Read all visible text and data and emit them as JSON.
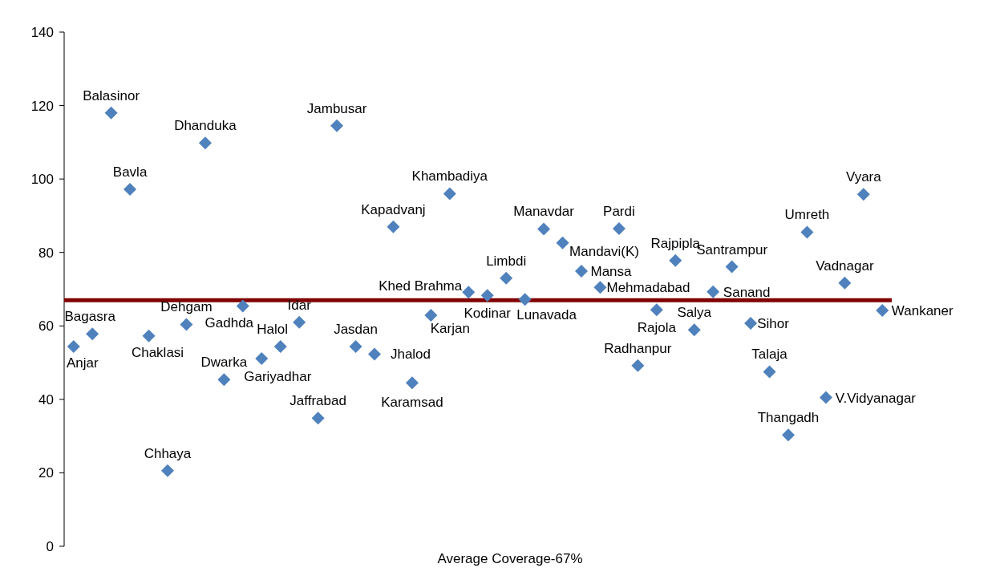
{
  "chart_data": {
    "type": "scatter",
    "categories": [
      null,
      null,
      null,
      null,
      null,
      null,
      null,
      null,
      null,
      null,
      null,
      null,
      null,
      null,
      null,
      null,
      null,
      null,
      null,
      null,
      null,
      null,
      null,
      null,
      null,
      null,
      null,
      null,
      null,
      null,
      null,
      null,
      null,
      null,
      null,
      null,
      null,
      null,
      null,
      null,
      null,
      null,
      null,
      null
    ],
    "xlabel": "Average Coverage-67%",
    "series": [
      {
        "name": "Anjar",
        "color": "#4f81bd",
        "values": [
          54.4,
          null,
          null,
          null,
          null,
          null,
          null,
          null,
          null,
          null,
          null,
          null,
          null,
          null,
          null,
          null,
          null,
          null,
          null,
          null,
          null,
          null,
          null,
          null,
          null,
          null,
          null,
          null,
          null,
          null,
          null,
          null,
          null,
          null,
          null,
          null,
          null,
          null,
          null,
          null,
          null,
          null,
          null,
          null
        ]
      },
      {
        "name": "Bagasra",
        "color": "#4f81bd",
        "values": [
          null,
          57.8,
          null,
          null,
          null,
          null,
          null,
          null,
          null,
          null,
          null,
          null,
          null,
          null,
          null,
          null,
          null,
          null,
          null,
          null,
          null,
          null,
          null,
          null,
          null,
          null,
          null,
          null,
          null,
          null,
          null,
          null,
          null,
          null,
          null,
          null,
          null,
          null,
          null,
          null,
          null,
          null,
          null,
          null
        ]
      },
      {
        "name": "Balasinor",
        "color": "#4f81bd",
        "values": [
          null,
          null,
          118.0,
          null,
          null,
          null,
          null,
          null,
          null,
          null,
          null,
          null,
          null,
          null,
          null,
          null,
          null,
          null,
          null,
          null,
          null,
          null,
          null,
          null,
          null,
          null,
          null,
          null,
          null,
          null,
          null,
          null,
          null,
          null,
          null,
          null,
          null,
          null,
          null,
          null,
          null,
          null,
          null,
          null
        ]
      },
      {
        "name": "Bavla",
        "color": "#4f81bd",
        "values": [
          null,
          null,
          null,
          97.2,
          null,
          null,
          null,
          null,
          null,
          null,
          null,
          null,
          null,
          null,
          null,
          null,
          null,
          null,
          null,
          null,
          null,
          null,
          null,
          null,
          null,
          null,
          null,
          null,
          null,
          null,
          null,
          null,
          null,
          null,
          null,
          null,
          null,
          null,
          null,
          null,
          null,
          null,
          null,
          null
        ]
      },
      {
        "name": "Chaklasi",
        "color": "#4f81bd",
        "values": [
          null,
          null,
          null,
          null,
          57.3,
          null,
          null,
          null,
          null,
          null,
          null,
          null,
          null,
          null,
          null,
          null,
          null,
          null,
          null,
          null,
          null,
          null,
          null,
          null,
          null,
          null,
          null,
          null,
          null,
          null,
          null,
          null,
          null,
          null,
          null,
          null,
          null,
          null,
          null,
          null,
          null,
          null,
          null,
          null
        ]
      },
      {
        "name": "Chhaya",
        "color": "#4f81bd",
        "values": [
          null,
          null,
          null,
          null,
          null,
          20.6,
          null,
          null,
          null,
          null,
          null,
          null,
          null,
          null,
          null,
          null,
          null,
          null,
          null,
          null,
          null,
          null,
          null,
          null,
          null,
          null,
          null,
          null,
          null,
          null,
          null,
          null,
          null,
          null,
          null,
          null,
          null,
          null,
          null,
          null,
          null,
          null,
          null,
          null
        ]
      },
      {
        "name": "Dehgam",
        "color": "#4f81bd",
        "values": [
          null,
          null,
          null,
          null,
          null,
          null,
          60.4,
          null,
          null,
          null,
          null,
          null,
          null,
          null,
          null,
          null,
          null,
          null,
          null,
          null,
          null,
          null,
          null,
          null,
          null,
          null,
          null,
          null,
          null,
          null,
          null,
          null,
          null,
          null,
          null,
          null,
          null,
          null,
          null,
          null,
          null,
          null,
          null,
          null
        ]
      },
      {
        "name": "Dhanduka",
        "color": "#4f81bd",
        "values": [
          null,
          null,
          null,
          null,
          null,
          null,
          null,
          109.8,
          null,
          null,
          null,
          null,
          null,
          null,
          null,
          null,
          null,
          null,
          null,
          null,
          null,
          null,
          null,
          null,
          null,
          null,
          null,
          null,
          null,
          null,
          null,
          null,
          null,
          null,
          null,
          null,
          null,
          null,
          null,
          null,
          null,
          null,
          null,
          null
        ]
      },
      {
        "name": "Dwarka",
        "color": "#4f81bd",
        "values": [
          null,
          null,
          null,
          null,
          null,
          null,
          null,
          null,
          45.4,
          null,
          null,
          null,
          null,
          null,
          null,
          null,
          null,
          null,
          null,
          null,
          null,
          null,
          null,
          null,
          null,
          null,
          null,
          null,
          null,
          null,
          null,
          null,
          null,
          null,
          null,
          null,
          null,
          null,
          null,
          null,
          null,
          null,
          null,
          null
        ]
      },
      {
        "name": "Gadhda",
        "color": "#4f81bd",
        "values": [
          null,
          null,
          null,
          null,
          null,
          null,
          null,
          null,
          null,
          65.4,
          null,
          null,
          null,
          null,
          null,
          null,
          null,
          null,
          null,
          null,
          null,
          null,
          null,
          null,
          null,
          null,
          null,
          null,
          null,
          null,
          null,
          null,
          null,
          null,
          null,
          null,
          null,
          null,
          null,
          null,
          null,
          null,
          null,
          null
        ]
      },
      {
        "name": "Gariyadhar",
        "color": "#4f81bd",
        "values": [
          null,
          null,
          null,
          null,
          null,
          null,
          null,
          null,
          null,
          null,
          51.1,
          null,
          null,
          null,
          null,
          null,
          null,
          null,
          null,
          null,
          null,
          null,
          null,
          null,
          null,
          null,
          null,
          null,
          null,
          null,
          null,
          null,
          null,
          null,
          null,
          null,
          null,
          null,
          null,
          null,
          null,
          null,
          null,
          null
        ]
      },
      {
        "name": "Halol",
        "color": "#4f81bd",
        "values": [
          null,
          null,
          null,
          null,
          null,
          null,
          null,
          null,
          null,
          null,
          null,
          54.4,
          null,
          null,
          null,
          null,
          null,
          null,
          null,
          null,
          null,
          null,
          null,
          null,
          null,
          null,
          null,
          null,
          null,
          null,
          null,
          null,
          null,
          null,
          null,
          null,
          null,
          null,
          null,
          null,
          null,
          null,
          null,
          null
        ]
      },
      {
        "name": "Idar",
        "color": "#4f81bd",
        "values": [
          null,
          null,
          null,
          null,
          null,
          null,
          null,
          null,
          null,
          null,
          null,
          null,
          61.0,
          null,
          null,
          null,
          null,
          null,
          null,
          null,
          null,
          null,
          null,
          null,
          null,
          null,
          null,
          null,
          null,
          null,
          null,
          null,
          null,
          null,
          null,
          null,
          null,
          null,
          null,
          null,
          null,
          null,
          null,
          null
        ]
      },
      {
        "name": "Jaffrabad",
        "color": "#4f81bd",
        "values": [
          null,
          null,
          null,
          null,
          null,
          null,
          null,
          null,
          null,
          null,
          null,
          null,
          null,
          34.9,
          null,
          null,
          null,
          null,
          null,
          null,
          null,
          null,
          null,
          null,
          null,
          null,
          null,
          null,
          null,
          null,
          null,
          null,
          null,
          null,
          null,
          null,
          null,
          null,
          null,
          null,
          null,
          null,
          null,
          null
        ]
      },
      {
        "name": "Jambusar",
        "color": "#4f81bd",
        "values": [
          null,
          null,
          null,
          null,
          null,
          null,
          null,
          null,
          null,
          null,
          null,
          null,
          null,
          null,
          114.5,
          null,
          null,
          null,
          null,
          null,
          null,
          null,
          null,
          null,
          null,
          null,
          null,
          null,
          null,
          null,
          null,
          null,
          null,
          null,
          null,
          null,
          null,
          null,
          null,
          null,
          null,
          null,
          null,
          null
        ]
      },
      {
        "name": "Jasdan",
        "color": "#4f81bd",
        "values": [
          null,
          null,
          null,
          null,
          null,
          null,
          null,
          null,
          null,
          null,
          null,
          null,
          null,
          null,
          null,
          54.4,
          null,
          null,
          null,
          null,
          null,
          null,
          null,
          null,
          null,
          null,
          null,
          null,
          null,
          null,
          null,
          null,
          null,
          null,
          null,
          null,
          null,
          null,
          null,
          null,
          null,
          null,
          null,
          null
        ]
      },
      {
        "name": "Jhalod",
        "color": "#4f81bd",
        "values": [
          null,
          null,
          null,
          null,
          null,
          null,
          null,
          null,
          null,
          null,
          null,
          null,
          null,
          null,
          null,
          null,
          52.3,
          null,
          null,
          null,
          null,
          null,
          null,
          null,
          null,
          null,
          null,
          null,
          null,
          null,
          null,
          null,
          null,
          null,
          null,
          null,
          null,
          null,
          null,
          null,
          null,
          null,
          null,
          null
        ]
      },
      {
        "name": "Kapadvanj",
        "color": "#4f81bd",
        "values": [
          null,
          null,
          null,
          null,
          null,
          null,
          null,
          null,
          null,
          null,
          null,
          null,
          null,
          null,
          null,
          null,
          null,
          87.0,
          null,
          null,
          null,
          null,
          null,
          null,
          null,
          null,
          null,
          null,
          null,
          null,
          null,
          null,
          null,
          null,
          null,
          null,
          null,
          null,
          null,
          null,
          null,
          null,
          null,
          null
        ]
      },
      {
        "name": "Karamsad",
        "color": "#4f81bd",
        "values": [
          null,
          null,
          null,
          null,
          null,
          null,
          null,
          null,
          null,
          null,
          null,
          null,
          null,
          null,
          null,
          null,
          null,
          null,
          44.5,
          null,
          null,
          null,
          null,
          null,
          null,
          null,
          null,
          null,
          null,
          null,
          null,
          null,
          null,
          null,
          null,
          null,
          null,
          null,
          null,
          null,
          null,
          null,
          null,
          null
        ]
      },
      {
        "name": "Karjan",
        "color": "#4f81bd",
        "values": [
          null,
          null,
          null,
          null,
          null,
          null,
          null,
          null,
          null,
          null,
          null,
          null,
          null,
          null,
          null,
          null,
          null,
          null,
          null,
          62.9,
          null,
          null,
          null,
          null,
          null,
          null,
          null,
          null,
          null,
          null,
          null,
          null,
          null,
          null,
          null,
          null,
          null,
          null,
          null,
          null,
          null,
          null,
          null,
          null
        ]
      },
      {
        "name": "Khambadiya",
        "color": "#4f81bd",
        "values": [
          null,
          null,
          null,
          null,
          null,
          null,
          null,
          null,
          null,
          null,
          null,
          null,
          null,
          null,
          null,
          null,
          null,
          null,
          null,
          null,
          96.0,
          null,
          null,
          null,
          null,
          null,
          null,
          null,
          null,
          null,
          null,
          null,
          null,
          null,
          null,
          null,
          null,
          null,
          null,
          null,
          null,
          null,
          null,
          null
        ]
      },
      {
        "name": "Khed Brahma",
        "color": "#4f81bd",
        "values": [
          null,
          null,
          null,
          null,
          null,
          null,
          null,
          null,
          null,
          null,
          null,
          null,
          null,
          null,
          null,
          null,
          null,
          null,
          null,
          null,
          null,
          69.2,
          null,
          null,
          null,
          null,
          null,
          null,
          null,
          null,
          null,
          null,
          null,
          null,
          null,
          null,
          null,
          null,
          null,
          null,
          null,
          null,
          null,
          null
        ]
      },
      {
        "name": "Kodinar",
        "color": "#4f81bd",
        "values": [
          null,
          null,
          null,
          null,
          null,
          null,
          null,
          null,
          null,
          null,
          null,
          null,
          null,
          null,
          null,
          null,
          null,
          null,
          null,
          null,
          null,
          null,
          68.3,
          null,
          null,
          null,
          null,
          null,
          null,
          null,
          null,
          null,
          null,
          null,
          null,
          null,
          null,
          null,
          null,
          null,
          null,
          null,
          null,
          null
        ]
      },
      {
        "name": "Limbdi",
        "color": "#4f81bd",
        "values": [
          null,
          null,
          null,
          null,
          null,
          null,
          null,
          null,
          null,
          null,
          null,
          null,
          null,
          null,
          null,
          null,
          null,
          null,
          null,
          null,
          null,
          null,
          null,
          73.0,
          null,
          null,
          null,
          null,
          null,
          null,
          null,
          null,
          null,
          null,
          null,
          null,
          null,
          null,
          null,
          null,
          null,
          null,
          null,
          null
        ]
      },
      {
        "name": "Lunavada",
        "color": "#4f81bd",
        "values": [
          null,
          null,
          null,
          null,
          null,
          null,
          null,
          null,
          null,
          null,
          null,
          null,
          null,
          null,
          null,
          null,
          null,
          null,
          null,
          null,
          null,
          null,
          null,
          null,
          67.2,
          null,
          null,
          null,
          null,
          null,
          null,
          null,
          null,
          null,
          null,
          null,
          null,
          null,
          null,
          null,
          null,
          null,
          null,
          null
        ]
      },
      {
        "name": "Manavdar",
        "color": "#4f81bd",
        "values": [
          null,
          null,
          null,
          null,
          null,
          null,
          null,
          null,
          null,
          null,
          null,
          null,
          null,
          null,
          null,
          null,
          null,
          null,
          null,
          null,
          null,
          null,
          null,
          null,
          null,
          86.4,
          null,
          null,
          null,
          null,
          null,
          null,
          null,
          null,
          null,
          null,
          null,
          null,
          null,
          null,
          null,
          null,
          null,
          null
        ]
      },
      {
        "name": "Mandavi(K)",
        "color": "#4f81bd",
        "values": [
          null,
          null,
          null,
          null,
          null,
          null,
          null,
          null,
          null,
          null,
          null,
          null,
          null,
          null,
          null,
          null,
          null,
          null,
          null,
          null,
          null,
          null,
          null,
          null,
          null,
          null,
          82.6,
          null,
          null,
          null,
          null,
          null,
          null,
          null,
          null,
          null,
          null,
          null,
          null,
          null,
          null,
          null,
          null,
          null
        ]
      },
      {
        "name": "Mansa",
        "color": "#4f81bd",
        "values": [
          null,
          null,
          null,
          null,
          null,
          null,
          null,
          null,
          null,
          null,
          null,
          null,
          null,
          null,
          null,
          null,
          null,
          null,
          null,
          null,
          null,
          null,
          null,
          null,
          null,
          null,
          null,
          74.9,
          null,
          null,
          null,
          null,
          null,
          null,
          null,
          null,
          null,
          null,
          null,
          null,
          null,
          null,
          null,
          null
        ]
      },
      {
        "name": "Mehmadabad",
        "color": "#4f81bd",
        "values": [
          null,
          null,
          null,
          null,
          null,
          null,
          null,
          null,
          null,
          null,
          null,
          null,
          null,
          null,
          null,
          null,
          null,
          null,
          null,
          null,
          null,
          null,
          null,
          null,
          null,
          null,
          null,
          null,
          70.5,
          null,
          null,
          null,
          null,
          null,
          null,
          null,
          null,
          null,
          null,
          null,
          null,
          null,
          null,
          null
        ]
      },
      {
        "name": "Pardi",
        "color": "#4f81bd",
        "values": [
          null,
          null,
          null,
          null,
          null,
          null,
          null,
          null,
          null,
          null,
          null,
          null,
          null,
          null,
          null,
          null,
          null,
          null,
          null,
          null,
          null,
          null,
          null,
          null,
          null,
          null,
          null,
          null,
          null,
          86.5,
          null,
          null,
          null,
          null,
          null,
          null,
          null,
          null,
          null,
          null,
          null,
          null,
          null,
          null
        ]
      },
      {
        "name": "Radhanpur",
        "color": "#4f81bd",
        "values": [
          null,
          null,
          null,
          null,
          null,
          null,
          null,
          null,
          null,
          null,
          null,
          null,
          null,
          null,
          null,
          null,
          null,
          null,
          null,
          null,
          null,
          null,
          null,
          null,
          null,
          null,
          null,
          null,
          null,
          null,
          49.2,
          null,
          null,
          null,
          null,
          null,
          null,
          null,
          null,
          null,
          null,
          null,
          null,
          null
        ]
      },
      {
        "name": "Rajola",
        "color": "#4f81bd",
        "values": [
          null,
          null,
          null,
          null,
          null,
          null,
          null,
          null,
          null,
          null,
          null,
          null,
          null,
          null,
          null,
          null,
          null,
          null,
          null,
          null,
          null,
          null,
          null,
          null,
          null,
          null,
          null,
          null,
          null,
          null,
          null,
          64.4,
          null,
          null,
          null,
          null,
          null,
          null,
          null,
          null,
          null,
          null,
          null,
          null
        ]
      },
      {
        "name": "Rajpipla",
        "color": "#4f81bd",
        "values": [
          null,
          null,
          null,
          null,
          null,
          null,
          null,
          null,
          null,
          null,
          null,
          null,
          null,
          null,
          null,
          null,
          null,
          null,
          null,
          null,
          null,
          null,
          null,
          null,
          null,
          null,
          null,
          null,
          null,
          null,
          null,
          null,
          77.8,
          null,
          null,
          null,
          null,
          null,
          null,
          null,
          null,
          null,
          null,
          null
        ]
      },
      {
        "name": "Salya",
        "color": "#4f81bd",
        "values": [
          null,
          null,
          null,
          null,
          null,
          null,
          null,
          null,
          null,
          null,
          null,
          null,
          null,
          null,
          null,
          null,
          null,
          null,
          null,
          null,
          null,
          null,
          null,
          null,
          null,
          null,
          null,
          null,
          null,
          null,
          null,
          null,
          null,
          58.9,
          null,
          null,
          null,
          null,
          null,
          null,
          null,
          null,
          null,
          null
        ]
      },
      {
        "name": "Sanand",
        "color": "#4f81bd",
        "values": [
          null,
          null,
          null,
          null,
          null,
          null,
          null,
          null,
          null,
          null,
          null,
          null,
          null,
          null,
          null,
          null,
          null,
          null,
          null,
          null,
          null,
          null,
          null,
          null,
          null,
          null,
          null,
          null,
          null,
          null,
          null,
          null,
          null,
          null,
          69.3,
          null,
          null,
          null,
          null,
          null,
          null,
          null,
          null,
          null
        ]
      },
      {
        "name": "Santrampur",
        "color": "#4f81bd",
        "values": [
          null,
          null,
          null,
          null,
          null,
          null,
          null,
          null,
          null,
          null,
          null,
          null,
          null,
          null,
          null,
          null,
          null,
          null,
          null,
          null,
          null,
          null,
          null,
          null,
          null,
          null,
          null,
          null,
          null,
          null,
          null,
          null,
          null,
          null,
          null,
          76.1,
          null,
          null,
          null,
          null,
          null,
          null,
          null,
          null
        ]
      },
      {
        "name": "Sihor",
        "color": "#4f81bd",
        "values": [
          null,
          null,
          null,
          null,
          null,
          null,
          null,
          null,
          null,
          null,
          null,
          null,
          null,
          null,
          null,
          null,
          null,
          null,
          null,
          null,
          null,
          null,
          null,
          null,
          null,
          null,
          null,
          null,
          null,
          null,
          null,
          null,
          null,
          null,
          null,
          null,
          60.7,
          null,
          null,
          null,
          null,
          null,
          null,
          null
        ]
      },
      {
        "name": "Talaja",
        "color": "#4f81bd",
        "values": [
          null,
          null,
          null,
          null,
          null,
          null,
          null,
          null,
          null,
          null,
          null,
          null,
          null,
          null,
          null,
          null,
          null,
          null,
          null,
          null,
          null,
          null,
          null,
          null,
          null,
          null,
          null,
          null,
          null,
          null,
          null,
          null,
          null,
          null,
          null,
          null,
          null,
          47.5,
          null,
          null,
          null,
          null,
          null,
          null
        ]
      },
      {
        "name": "Thangadh",
        "color": "#4f81bd",
        "values": [
          null,
          null,
          null,
          null,
          null,
          null,
          null,
          null,
          null,
          null,
          null,
          null,
          null,
          null,
          null,
          null,
          null,
          null,
          null,
          null,
          null,
          null,
          null,
          null,
          null,
          null,
          null,
          null,
          null,
          null,
          null,
          null,
          null,
          null,
          null,
          null,
          null,
          null,
          30.3,
          null,
          null,
          null,
          null,
          null
        ]
      },
      {
        "name": "Umreth",
        "color": "#4f81bd",
        "values": [
          null,
          null,
          null,
          null,
          null,
          null,
          null,
          null,
          null,
          null,
          null,
          null,
          null,
          null,
          null,
          null,
          null,
          null,
          null,
          null,
          null,
          null,
          null,
          null,
          null,
          null,
          null,
          null,
          null,
          null,
          null,
          null,
          null,
          null,
          null,
          null,
          null,
          null,
          null,
          85.5,
          null,
          null,
          null,
          null
        ]
      },
      {
        "name": "V.Vidyanagar",
        "color": "#4f81bd",
        "values": [
          null,
          null,
          null,
          null,
          null,
          null,
          null,
          null,
          null,
          null,
          null,
          null,
          null,
          null,
          null,
          null,
          null,
          null,
          null,
          null,
          null,
          null,
          null,
          null,
          null,
          null,
          null,
          null,
          null,
          null,
          null,
          null,
          null,
          null,
          null,
          null,
          null,
          null,
          null,
          null,
          40.5,
          null,
          null,
          null
        ]
      },
      {
        "name": "Vadnagar",
        "color": "#4f81bd",
        "values": [
          null,
          null,
          null,
          null,
          null,
          null,
          null,
          null,
          null,
          null,
          null,
          null,
          null,
          null,
          null,
          null,
          null,
          null,
          null,
          null,
          null,
          null,
          null,
          null,
          null,
          null,
          null,
          null,
          null,
          null,
          null,
          null,
          null,
          null,
          null,
          null,
          null,
          null,
          null,
          null,
          null,
          71.7,
          null,
          null
        ]
      },
      {
        "name": "Vyara",
        "color": "#4f81bd",
        "values": [
          null,
          null,
          null,
          null,
          null,
          null,
          null,
          null,
          null,
          null,
          null,
          null,
          null,
          null,
          null,
          null,
          null,
          null,
          null,
          null,
          null,
          null,
          null,
          null,
          null,
          null,
          null,
          null,
          null,
          null,
          null,
          null,
          null,
          null,
          null,
          null,
          null,
          null,
          null,
          null,
          null,
          null,
          95.8,
          null
        ]
      },
      {
        "name": "Wankaner",
        "color": "#4f81bd",
        "values": [
          null,
          null,
          null,
          null,
          null,
          null,
          null,
          null,
          null,
          null,
          null,
          null,
          null,
          null,
          null,
          null,
          null,
          null,
          null,
          null,
          null,
          null,
          null,
          null,
          null,
          null,
          null,
          null,
          null,
          null,
          null,
          null,
          null,
          null,
          null,
          null,
          null,
          null,
          null,
          null,
          null,
          null,
          null,
          64.2
        ]
      }
    ],
    "ylim": [
      0,
      140
    ],
    "yticks": [
      0,
      20,
      40,
      60,
      80,
      100,
      120,
      140
    ],
    "marker": "diamond",
    "tick_labels": "y",
    "grid": false,
    "legend": false,
    "ref_lines": [
      {
        "axis": "y",
        "value": 67,
        "color": "#800000"
      }
    ]
  }
}
